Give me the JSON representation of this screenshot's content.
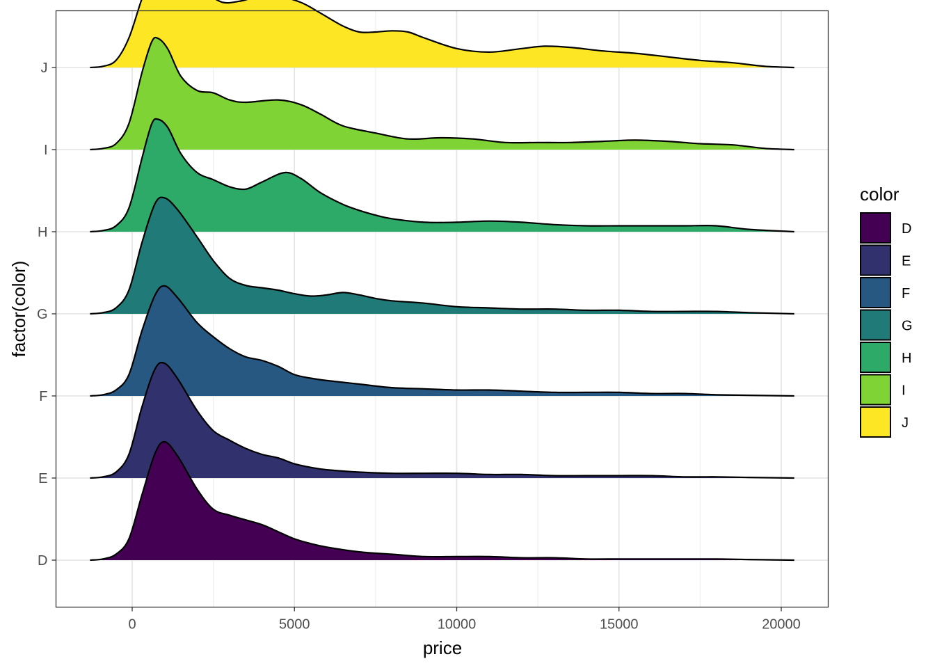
{
  "chart_data": {
    "type": "ridgeline",
    "xlabel": "price",
    "ylabel": "factor(color)",
    "xlim": [
      -2500,
      21500
    ],
    "x_ticks": [
      0,
      5000,
      10000,
      15000,
      20000
    ],
    "x_tick_labels": [
      "0",
      "5000",
      "10000",
      "15000",
      "20000"
    ],
    "categories": [
      "D",
      "E",
      "F",
      "G",
      "H",
      "I",
      "J"
    ],
    "grid": true,
    "legend": {
      "title": "color",
      "position": "right",
      "entries": [
        "D",
        "E",
        "F",
        "G",
        "H",
        "I",
        "J"
      ]
    },
    "series": [
      {
        "name": "D",
        "color": "#440154",
        "density": [
          [
            -1300,
            0
          ],
          [
            -900,
            0.01
          ],
          [
            -500,
            0.05
          ],
          [
            -100,
            0.18
          ],
          [
            300,
            0.55
          ],
          [
            700,
            0.9
          ],
          [
            1000,
            1.0
          ],
          [
            1400,
            0.88
          ],
          [
            2000,
            0.6
          ],
          [
            2500,
            0.43
          ],
          [
            3000,
            0.38
          ],
          [
            3500,
            0.34
          ],
          [
            4000,
            0.3
          ],
          [
            4500,
            0.24
          ],
          [
            5000,
            0.18
          ],
          [
            5500,
            0.14
          ],
          [
            6000,
            0.11
          ],
          [
            7000,
            0.07
          ],
          [
            8000,
            0.05
          ],
          [
            9000,
            0.03
          ],
          [
            10000,
            0.03
          ],
          [
            11000,
            0.03
          ],
          [
            12000,
            0.02
          ],
          [
            13000,
            0.02
          ],
          [
            14000,
            0.01
          ],
          [
            15000,
            0.01
          ],
          [
            16000,
            0.01
          ],
          [
            17000,
            0.01
          ],
          [
            18000,
            0.01
          ],
          [
            19000,
            0.005
          ],
          [
            20400,
            0
          ]
        ]
      },
      {
        "name": "E",
        "color": "#31316e",
        "density": [
          [
            -1300,
            0
          ],
          [
            -900,
            0.01
          ],
          [
            -500,
            0.05
          ],
          [
            -100,
            0.2
          ],
          [
            300,
            0.6
          ],
          [
            700,
            0.92
          ],
          [
            1000,
            0.97
          ],
          [
            1400,
            0.84
          ],
          [
            2000,
            0.57
          ],
          [
            2500,
            0.4
          ],
          [
            3000,
            0.32
          ],
          [
            3500,
            0.25
          ],
          [
            4000,
            0.2
          ],
          [
            4500,
            0.17
          ],
          [
            5000,
            0.12
          ],
          [
            5500,
            0.09
          ],
          [
            6000,
            0.07
          ],
          [
            7000,
            0.05
          ],
          [
            8000,
            0.04
          ],
          [
            9000,
            0.04
          ],
          [
            10000,
            0.04
          ],
          [
            11000,
            0.03
          ],
          [
            12000,
            0.03
          ],
          [
            13000,
            0.02
          ],
          [
            14000,
            0.02
          ],
          [
            15000,
            0.02
          ],
          [
            16000,
            0.02
          ],
          [
            17000,
            0.01
          ],
          [
            18000,
            0.01
          ],
          [
            19000,
            0.005
          ],
          [
            20400,
            0
          ]
        ]
      },
      {
        "name": "F",
        "color": "#275882",
        "density": [
          [
            -1300,
            0
          ],
          [
            -900,
            0.01
          ],
          [
            -500,
            0.05
          ],
          [
            -100,
            0.18
          ],
          [
            300,
            0.55
          ],
          [
            700,
            0.85
          ],
          [
            1000,
            0.93
          ],
          [
            1400,
            0.83
          ],
          [
            2000,
            0.62
          ],
          [
            2500,
            0.5
          ],
          [
            3000,
            0.4
          ],
          [
            3500,
            0.33
          ],
          [
            4000,
            0.3
          ],
          [
            4500,
            0.25
          ],
          [
            5000,
            0.18
          ],
          [
            5500,
            0.15
          ],
          [
            6000,
            0.13
          ],
          [
            7000,
            0.1
          ],
          [
            8000,
            0.07
          ],
          [
            9000,
            0.06
          ],
          [
            10000,
            0.05
          ],
          [
            11000,
            0.05
          ],
          [
            12000,
            0.04
          ],
          [
            13000,
            0.03
          ],
          [
            14000,
            0.03
          ],
          [
            15000,
            0.03
          ],
          [
            16000,
            0.02
          ],
          [
            17000,
            0.02
          ],
          [
            18000,
            0.01
          ],
          [
            19000,
            0.005
          ],
          [
            20400,
            0
          ]
        ]
      },
      {
        "name": "G",
        "color": "#1f7a78",
        "density": [
          [
            -1300,
            0
          ],
          [
            -900,
            0.01
          ],
          [
            -500,
            0.05
          ],
          [
            -100,
            0.2
          ],
          [
            300,
            0.6
          ],
          [
            700,
            0.93
          ],
          [
            1000,
            0.98
          ],
          [
            1400,
            0.88
          ],
          [
            2000,
            0.65
          ],
          [
            2500,
            0.45
          ],
          [
            3000,
            0.3
          ],
          [
            3500,
            0.24
          ],
          [
            4000,
            0.22
          ],
          [
            4500,
            0.2
          ],
          [
            5000,
            0.17
          ],
          [
            5500,
            0.15
          ],
          [
            6000,
            0.16
          ],
          [
            6500,
            0.18
          ],
          [
            7000,
            0.16
          ],
          [
            7500,
            0.13
          ],
          [
            8000,
            0.11
          ],
          [
            9000,
            0.09
          ],
          [
            10000,
            0.06
          ],
          [
            11000,
            0.05
          ],
          [
            12000,
            0.04
          ],
          [
            13000,
            0.04
          ],
          [
            14000,
            0.03
          ],
          [
            15000,
            0.03
          ],
          [
            16000,
            0.02
          ],
          [
            17000,
            0.02
          ],
          [
            18000,
            0.02
          ],
          [
            19000,
            0.01
          ],
          [
            20400,
            0
          ]
        ]
      },
      {
        "name": "H",
        "color": "#2da968",
        "density": [
          [
            -1300,
            0
          ],
          [
            -900,
            0.01
          ],
          [
            -500,
            0.05
          ],
          [
            -100,
            0.2
          ],
          [
            300,
            0.62
          ],
          [
            600,
            0.91
          ],
          [
            800,
            0.95
          ],
          [
            1100,
            0.88
          ],
          [
            1500,
            0.66
          ],
          [
            2000,
            0.5
          ],
          [
            2500,
            0.44
          ],
          [
            3000,
            0.38
          ],
          [
            3500,
            0.36
          ],
          [
            4000,
            0.42
          ],
          [
            4700,
            0.5
          ],
          [
            5200,
            0.45
          ],
          [
            5800,
            0.33
          ],
          [
            6500,
            0.23
          ],
          [
            7000,
            0.18
          ],
          [
            7500,
            0.14
          ],
          [
            8000,
            0.11
          ],
          [
            9000,
            0.08
          ],
          [
            10000,
            0.08
          ],
          [
            11000,
            0.09
          ],
          [
            12000,
            0.08
          ],
          [
            13000,
            0.06
          ],
          [
            14000,
            0.05
          ],
          [
            15000,
            0.05
          ],
          [
            16000,
            0.05
          ],
          [
            17000,
            0.05
          ],
          [
            18000,
            0.05
          ],
          [
            19000,
            0.02
          ],
          [
            20400,
            0
          ]
        ]
      },
      {
        "name": "I",
        "color": "#7fd334",
        "density": [
          [
            -1300,
            0
          ],
          [
            -900,
            0.01
          ],
          [
            -500,
            0.05
          ],
          [
            -100,
            0.22
          ],
          [
            300,
            0.65
          ],
          [
            600,
            0.91
          ],
          [
            800,
            0.94
          ],
          [
            1100,
            0.85
          ],
          [
            1500,
            0.62
          ],
          [
            2000,
            0.5
          ],
          [
            2500,
            0.48
          ],
          [
            3000,
            0.42
          ],
          [
            3500,
            0.4
          ],
          [
            4500,
            0.42
          ],
          [
            5200,
            0.38
          ],
          [
            5800,
            0.3
          ],
          [
            6500,
            0.2
          ],
          [
            7500,
            0.14
          ],
          [
            8500,
            0.09
          ],
          [
            9500,
            0.1
          ],
          [
            10500,
            0.09
          ],
          [
            11500,
            0.06
          ],
          [
            12500,
            0.06
          ],
          [
            13500,
            0.06
          ],
          [
            14500,
            0.07
          ],
          [
            15500,
            0.08
          ],
          [
            16500,
            0.07
          ],
          [
            17500,
            0.05
          ],
          [
            18500,
            0.04
          ],
          [
            19500,
            0.01
          ],
          [
            20400,
            0
          ]
        ]
      },
      {
        "name": "J",
        "color": "#fde725",
        "density": [
          [
            -1300,
            0
          ],
          [
            -900,
            0.01
          ],
          [
            -500,
            0.06
          ],
          [
            -100,
            0.25
          ],
          [
            300,
            0.58
          ],
          [
            600,
            0.75
          ],
          [
            850,
            0.8
          ],
          [
            1200,
            0.76
          ],
          [
            1700,
            0.7
          ],
          [
            2300,
            0.62
          ],
          [
            2800,
            0.55
          ],
          [
            3300,
            0.56
          ],
          [
            3800,
            0.59
          ],
          [
            4500,
            0.6
          ],
          [
            5200,
            0.55
          ],
          [
            5800,
            0.46
          ],
          [
            6500,
            0.35
          ],
          [
            7000,
            0.3
          ],
          [
            7500,
            0.3
          ],
          [
            8000,
            0.31
          ],
          [
            8500,
            0.3
          ],
          [
            9000,
            0.25
          ],
          [
            10000,
            0.16
          ],
          [
            11000,
            0.13
          ],
          [
            12000,
            0.16
          ],
          [
            12700,
            0.18
          ],
          [
            13500,
            0.17
          ],
          [
            14500,
            0.14
          ],
          [
            15500,
            0.12
          ],
          [
            16500,
            0.09
          ],
          [
            17500,
            0.06
          ],
          [
            18500,
            0.04
          ],
          [
            19500,
            0.01
          ],
          [
            20400,
            0
          ]
        ]
      }
    ]
  }
}
